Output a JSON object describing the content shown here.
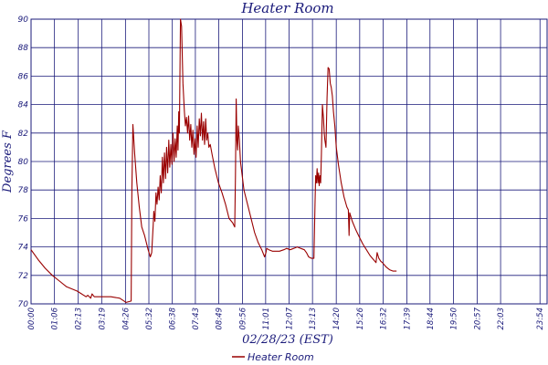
{
  "chart_data": {
    "type": "line",
    "title": "Heater Room",
    "xlabel": "02/28/23 (EST)",
    "ylabel": "Degrees F",
    "ylim": [
      70,
      90
    ],
    "yticks": [
      "70",
      "72",
      "74",
      "76",
      "78",
      "80",
      "82",
      "84",
      "86",
      "88",
      "90"
    ],
    "xlim": [
      0,
      1454
    ],
    "xticks": [
      {
        "label": "00:00",
        "t": 0
      },
      {
        "label": "01:06",
        "t": 66
      },
      {
        "label": "02:13",
        "t": 133
      },
      {
        "label": "03:19",
        "t": 199
      },
      {
        "label": "04:26",
        "t": 266
      },
      {
        "label": "05:32",
        "t": 332
      },
      {
        "label": "06:38",
        "t": 398
      },
      {
        "label": "07:43",
        "t": 463
      },
      {
        "label": "08:49",
        "t": 529
      },
      {
        "label": "09:56",
        "t": 596
      },
      {
        "label": "11:01",
        "t": 661
      },
      {
        "label": "12:07",
        "t": 727
      },
      {
        "label": "13:13",
        "t": 793
      },
      {
        "label": "14:20",
        "t": 860
      },
      {
        "label": "15:26",
        "t": 926
      },
      {
        "label": "16:32",
        "t": 992
      },
      {
        "label": "17:39",
        "t": 1059
      },
      {
        "label": "18:44",
        "t": 1124
      },
      {
        "label": "19:50",
        "t": 1190
      },
      {
        "label": "20:57",
        "t": 1257
      },
      {
        "label": "22:03",
        "t": 1323
      },
      {
        "label": "23:54",
        "t": 1434
      }
    ],
    "grid": true,
    "legend_position": "bottom-center",
    "series": [
      {
        "name": "Heater Room",
        "color": "#990000",
        "points": [
          [
            0,
            73.8
          ],
          [
            20,
            73.1
          ],
          [
            40,
            72.5
          ],
          [
            60,
            72.0
          ],
          [
            80,
            71.6
          ],
          [
            100,
            71.2
          ],
          [
            130,
            70.9
          ],
          [
            155,
            70.5
          ],
          [
            160,
            70.6
          ],
          [
            168,
            70.4
          ],
          [
            172,
            70.7
          ],
          [
            178,
            70.5
          ],
          [
            200,
            70.5
          ],
          [
            225,
            70.5
          ],
          [
            250,
            70.4
          ],
          [
            268,
            70.1
          ],
          [
            282,
            70.2
          ],
          [
            284,
            78.0
          ],
          [
            287,
            82.6
          ],
          [
            292,
            80.5
          ],
          [
            298,
            78.5
          ],
          [
            305,
            76.8
          ],
          [
            312,
            75.4
          ],
          [
            320,
            74.8
          ],
          [
            330,
            73.8
          ],
          [
            336,
            73.3
          ],
          [
            340,
            73.6
          ],
          [
            344,
            75.5
          ],
          [
            346,
            76.5
          ],
          [
            349,
            75.8
          ],
          [
            352,
            77.8
          ],
          [
            355,
            77.0
          ],
          [
            358,
            78.2
          ],
          [
            361,
            77.3
          ],
          [
            364,
            79.0
          ],
          [
            367,
            77.8
          ],
          [
            370,
            80.3
          ],
          [
            373,
            78.5
          ],
          [
            376,
            80.6
          ],
          [
            379,
            78.8
          ],
          [
            382,
            81.0
          ],
          [
            385,
            79.2
          ],
          [
            388,
            81.5
          ],
          [
            391,
            79.6
          ],
          [
            394,
            81.2
          ],
          [
            397,
            79.8
          ],
          [
            400,
            82.0
          ],
          [
            403,
            80.0
          ],
          [
            406,
            81.6
          ],
          [
            409,
            80.3
          ],
          [
            412,
            82.5
          ],
          [
            414,
            80.8
          ],
          [
            416,
            83.5
          ],
          [
            418,
            82.0
          ],
          [
            421,
            90.0
          ],
          [
            424,
            89.5
          ],
          [
            428,
            85.5
          ],
          [
            432,
            83.5
          ],
          [
            435,
            82.5
          ],
          [
            438,
            83.1
          ],
          [
            441,
            82.0
          ],
          [
            444,
            83.2
          ],
          [
            447,
            81.5
          ],
          [
            450,
            82.6
          ],
          [
            453,
            81.0
          ],
          [
            456,
            82.2
          ],
          [
            459,
            80.5
          ],
          [
            462,
            81.6
          ],
          [
            465,
            80.3
          ],
          [
            468,
            82.5
          ],
          [
            471,
            81.0
          ],
          [
            474,
            83.0
          ],
          [
            477,
            81.8
          ],
          [
            480,
            83.4
          ],
          [
            483,
            81.5
          ],
          [
            486,
            82.8
          ],
          [
            489,
            81.2
          ],
          [
            492,
            83.0
          ],
          [
            495,
            81.5
          ],
          [
            498,
            82.0
          ],
          [
            501,
            81.0
          ],
          [
            505,
            81.2
          ],
          [
            510,
            80.5
          ],
          [
            518,
            79.5
          ],
          [
            528,
            78.5
          ],
          [
            538,
            77.8
          ],
          [
            548,
            77.0
          ],
          [
            558,
            76.0
          ],
          [
            568,
            75.7
          ],
          [
            574,
            75.4
          ],
          [
            576,
            79.0
          ],
          [
            578,
            84.4
          ],
          [
            580,
            81.5
          ],
          [
            582,
            80.8
          ],
          [
            584,
            82.5
          ],
          [
            587,
            81.5
          ],
          [
            590,
            80.0
          ],
          [
            595,
            79.0
          ],
          [
            600,
            78.0
          ],
          [
            610,
            77.0
          ],
          [
            620,
            76.0
          ],
          [
            630,
            75.0
          ],
          [
            640,
            74.3
          ],
          [
            650,
            73.8
          ],
          [
            658,
            73.3
          ],
          [
            662,
            73.6
          ],
          [
            664,
            73.9
          ],
          [
            670,
            73.8
          ],
          [
            680,
            73.7
          ],
          [
            690,
            73.7
          ],
          [
            700,
            73.7
          ],
          [
            712,
            73.8
          ],
          [
            720,
            73.9
          ],
          [
            730,
            73.8
          ],
          [
            740,
            73.9
          ],
          [
            750,
            74.0
          ],
          [
            760,
            73.9
          ],
          [
            770,
            73.8
          ],
          [
            776,
            73.6
          ],
          [
            782,
            73.3
          ],
          [
            790,
            73.2
          ],
          [
            797,
            73.2
          ],
          [
            800,
            77.0
          ],
          [
            802,
            79.0
          ],
          [
            804,
            78.5
          ],
          [
            806,
            79.5
          ],
          [
            808,
            78.5
          ],
          [
            810,
            79.2
          ],
          [
            812,
            78.3
          ],
          [
            814,
            79.0
          ],
          [
            816,
            78.5
          ],
          [
            818,
            80.5
          ],
          [
            821,
            84.0
          ],
          [
            824,
            83.0
          ],
          [
            826,
            82.0
          ],
          [
            828,
            81.5
          ],
          [
            831,
            81.0
          ],
          [
            834,
            84.5
          ],
          [
            837,
            86.6
          ],
          [
            840,
            86.5
          ],
          [
            843,
            85.5
          ],
          [
            846,
            85.2
          ],
          [
            849,
            84.6
          ],
          [
            852,
            83.5
          ],
          [
            856,
            82.5
          ],
          [
            860,
            81.0
          ],
          [
            866,
            79.8
          ],
          [
            874,
            78.5
          ],
          [
            882,
            77.5
          ],
          [
            890,
            76.8
          ],
          [
            894,
            76.6
          ],
          [
            896,
            74.8
          ],
          [
            898,
            76.4
          ],
          [
            905,
            75.8
          ],
          [
            915,
            75.2
          ],
          [
            925,
            74.7
          ],
          [
            935,
            74.2
          ],
          [
            945,
            73.8
          ],
          [
            955,
            73.4
          ],
          [
            965,
            73.1
          ],
          [
            972,
            72.9
          ],
          [
            975,
            73.6
          ],
          [
            980,
            73.2
          ],
          [
            985,
            73.0
          ],
          [
            990,
            72.9
          ],
          [
            1000,
            72.6
          ],
          [
            1010,
            72.4
          ],
          [
            1020,
            72.3
          ],
          [
            1030,
            72.3
          ]
        ]
      }
    ]
  }
}
